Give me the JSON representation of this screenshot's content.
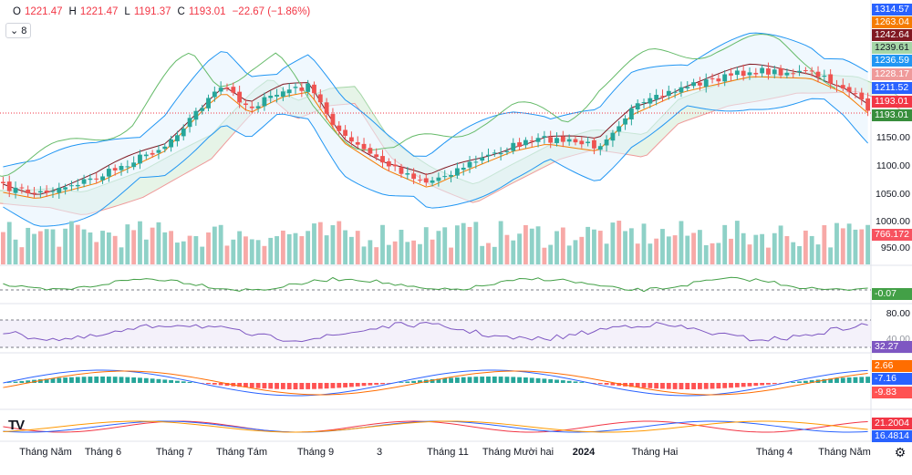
{
  "header": {
    "open_label": "O",
    "open": "1221.47",
    "high_label": "H",
    "high": "1221.47",
    "low_label": "L",
    "low": "1191.37",
    "close_label": "C",
    "close": "1193.01",
    "change": "−22.67 (−1.86%)"
  },
  "collapse_button": {
    "count": "8"
  },
  "price_axis": [
    "1150.00",
    "1100.00",
    "1050.00",
    "1000.00",
    "950.00"
  ],
  "price_tags": [
    {
      "text": "1314.57",
      "color": "#2962ff"
    },
    {
      "text": "1263.04",
      "color": "#f57c00"
    },
    {
      "text": "1242.64",
      "color": "#801922"
    },
    {
      "text": "1239.61",
      "color": "#a5d6a7"
    },
    {
      "text": "1236.59",
      "color": "#2196f3"
    },
    {
      "text": "1228.17",
      "color": "#ef9a9a"
    },
    {
      "text": "1211.52",
      "color": "#2962ff"
    },
    {
      "text": "1193.01",
      "color": "#f23645"
    },
    {
      "text": "1193.01",
      "color": "#388e3c"
    }
  ],
  "volume_tag": {
    "text": "766.172",
    "color": "#f7525f"
  },
  "osc1_tag": {
    "text": "-0.07",
    "color": "#43a047"
  },
  "rsi": {
    "upper": "80.00",
    "lower": "40.00",
    "value": "32.27",
    "color": "#7e57c2"
  },
  "macd_tags": [
    {
      "text": "2.66",
      "color": "#ff6d00"
    },
    {
      "text": "-7.16",
      "color": "#2962ff"
    },
    {
      "text": "-9.83",
      "color": "#ff5252"
    }
  ],
  "dmi_tags": [
    {
      "text": "21.2004",
      "color": "#f23645"
    },
    {
      "text": "16.4814",
      "color": "#2962ff"
    }
  ],
  "time_axis": [
    {
      "text": "Tháng Năm",
      "bold": false
    },
    {
      "text": "Tháng 6",
      "bold": false
    },
    {
      "text": "Tháng 7",
      "bold": false
    },
    {
      "text": "Tháng Tám",
      "bold": false
    },
    {
      "text": "Tháng 9",
      "bold": false
    },
    {
      "text": "3",
      "bold": false
    },
    {
      "text": "Tháng 11",
      "bold": false
    },
    {
      "text": "Tháng Mười hai",
      "bold": false
    },
    {
      "text": "2024",
      "bold": true
    },
    {
      "text": "Tháng Hai",
      "bold": false
    },
    {
      "text": "Tháng 4",
      "bold": false
    },
    {
      "text": "Tháng Năm",
      "bold": false
    }
  ],
  "logo": "TV",
  "colors": {
    "up": "#26a69a",
    "down": "#ef5350",
    "up_vol": "#8ed1c7",
    "down_vol": "#f7a9a7"
  }
}
